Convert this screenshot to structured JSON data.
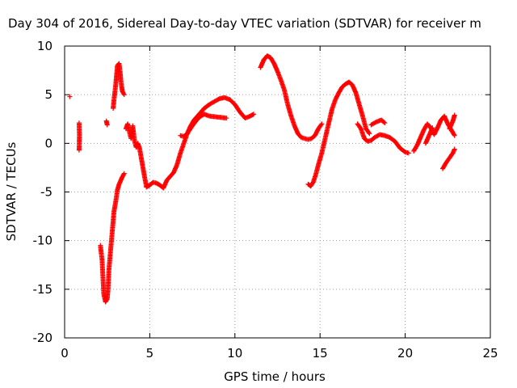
{
  "chart_data": {
    "type": "scatter",
    "title": "Day 304 of 2016, Sidereal Day-to-day VTEC variation (SDTVAR) for receiver m",
    "xlabel": "GPS time / hours",
    "ylabel": "SDTVAR / TECUs",
    "xlim": [
      0,
      25
    ],
    "ylim": [
      -20,
      10
    ],
    "xticks": [
      0,
      5,
      10,
      15,
      20,
      25
    ],
    "yticks": [
      -20,
      -15,
      -10,
      -5,
      0,
      5,
      10
    ],
    "grid": true,
    "marker": "+",
    "color": "#ff0000",
    "segments": [
      {
        "x": [
          0.3
        ],
        "y": [
          4.8
        ]
      },
      {
        "x": [
          0.85,
          0.87,
          0.85
        ],
        "y": [
          2.1,
          0.8,
          -0.7
        ]
      },
      {
        "x": [
          2.1,
          2.2,
          2.3,
          2.4,
          2.5,
          2.55,
          2.6,
          2.7,
          2.8,
          2.9,
          3.0,
          3.1,
          3.2,
          3.3,
          3.4,
          3.5
        ],
        "y": [
          -10.5,
          -12.0,
          -15.5,
          -16.3,
          -16.0,
          -15.0,
          -13.0,
          -11.0,
          -9.0,
          -7.0,
          -6.0,
          -4.8,
          -4.2,
          -3.8,
          -3.4,
          -3.1
        ]
      },
      {
        "x": [
          2.45,
          2.5
        ],
        "y": [
          2.3,
          1.9
        ]
      },
      {
        "x": [
          2.85,
          2.9,
          3.0,
          3.05,
          3.1,
          3.2,
          3.25,
          3.3,
          3.35,
          3.4,
          3.5
        ],
        "y": [
          3.6,
          4.5,
          6.0,
          7.0,
          8.0,
          8.2,
          7.5,
          6.5,
          5.8,
          5.3,
          5.0
        ]
      },
      {
        "x": [
          3.6,
          3.7,
          3.8,
          3.9,
          4.0,
          4.1,
          4.2,
          4.3,
          4.4,
          4.5,
          4.6,
          4.7,
          4.8
        ],
        "y": [
          1.5,
          2.0,
          1.2,
          0.5,
          1.8,
          0.3,
          -0.4,
          0.0,
          -0.5,
          -1.5,
          -2.5,
          -3.5,
          -4.4
        ]
      },
      {
        "x": [
          4.8,
          5.0,
          5.2,
          5.4,
          5.6,
          5.8,
          6.0,
          6.2,
          6.4,
          6.6,
          6.8,
          7.0,
          7.2,
          7.4,
          7.6,
          7.8,
          8.0,
          8.2,
          8.5,
          8.8,
          9.1,
          9.4,
          9.7,
          10.0,
          10.3,
          10.6,
          10.9,
          11.1
        ],
        "y": [
          -4.5,
          -4.3,
          -4.0,
          -4.1,
          -4.3,
          -4.6,
          -3.8,
          -3.4,
          -3.0,
          -2.2,
          -1.0,
          0.0,
          1.0,
          1.8,
          2.4,
          2.8,
          3.2,
          3.6,
          4.0,
          4.3,
          4.6,
          4.7,
          4.5,
          4.0,
          3.2,
          2.6,
          2.8,
          3.0
        ]
      },
      {
        "x": [
          6.8,
          7.0,
          7.2,
          7.5,
          7.8,
          8.0,
          8.2,
          8.5,
          9.0,
          9.5
        ],
        "y": [
          0.8,
          0.7,
          1.0,
          1.8,
          2.5,
          2.8,
          3.0,
          2.8,
          2.7,
          2.6
        ]
      },
      {
        "x": [
          11.5,
          11.7,
          11.9,
          12.1,
          12.3,
          12.5,
          12.7,
          12.9,
          13.1,
          13.3,
          13.5,
          13.7,
          13.9,
          14.1,
          14.3,
          14.5,
          14.7,
          14.9,
          15.1
        ],
        "y": [
          7.8,
          8.6,
          9.0,
          8.8,
          8.2,
          7.4,
          6.5,
          5.5,
          4.0,
          2.8,
          1.8,
          1.0,
          0.6,
          0.5,
          0.4,
          0.5,
          0.8,
          1.5,
          2.0
        ]
      },
      {
        "x": [
          14.3,
          14.45,
          14.6,
          14.75,
          14.9,
          15.1,
          15.3,
          15.5,
          15.7,
          15.9,
          16.1,
          16.3,
          16.5,
          16.7,
          16.9,
          17.1,
          17.3,
          17.5,
          17.7,
          17.9
        ],
        "y": [
          -4.2,
          -4.4,
          -4.0,
          -3.2,
          -2.2,
          -1.0,
          0.5,
          2.0,
          3.5,
          4.5,
          5.2,
          5.8,
          6.1,
          6.3,
          6.0,
          5.2,
          4.0,
          2.8,
          1.5,
          1.0
        ]
      },
      {
        "x": [
          17.2,
          17.4,
          17.6,
          17.8,
          18.0,
          18.2,
          18.5,
          18.8,
          19.1,
          19.4,
          19.7,
          20.0,
          20.2
        ],
        "y": [
          2.0,
          1.5,
          0.5,
          0.2,
          0.3,
          0.6,
          0.9,
          0.8,
          0.6,
          0.2,
          -0.5,
          -0.9,
          -1.0
        ]
      },
      {
        "x": [
          18.0,
          18.3,
          18.6,
          18.8
        ],
        "y": [
          1.9,
          2.2,
          2.4,
          2.1
        ]
      },
      {
        "x": [
          20.5,
          20.7,
          20.9,
          21.1,
          21.3,
          21.5,
          21.7,
          21.9,
          22.1,
          22.3,
          22.5,
          22.7,
          22.9
        ],
        "y": [
          -0.8,
          -0.2,
          0.6,
          1.4,
          2.0,
          1.6,
          0.9,
          1.6,
          2.4,
          2.8,
          2.0,
          1.4,
          0.8
        ]
      },
      {
        "x": [
          21.2,
          21.4,
          21.6
        ],
        "y": [
          0.0,
          0.8,
          1.6
        ]
      },
      {
        "x": [
          22.2,
          22.4,
          22.6,
          22.8,
          22.9
        ],
        "y": [
          -2.6,
          -2.0,
          -1.5,
          -1.0,
          -0.6
        ]
      },
      {
        "x": [
          22.6,
          22.8,
          22.9
        ],
        "y": [
          1.5,
          2.3,
          2.9
        ]
      }
    ]
  }
}
